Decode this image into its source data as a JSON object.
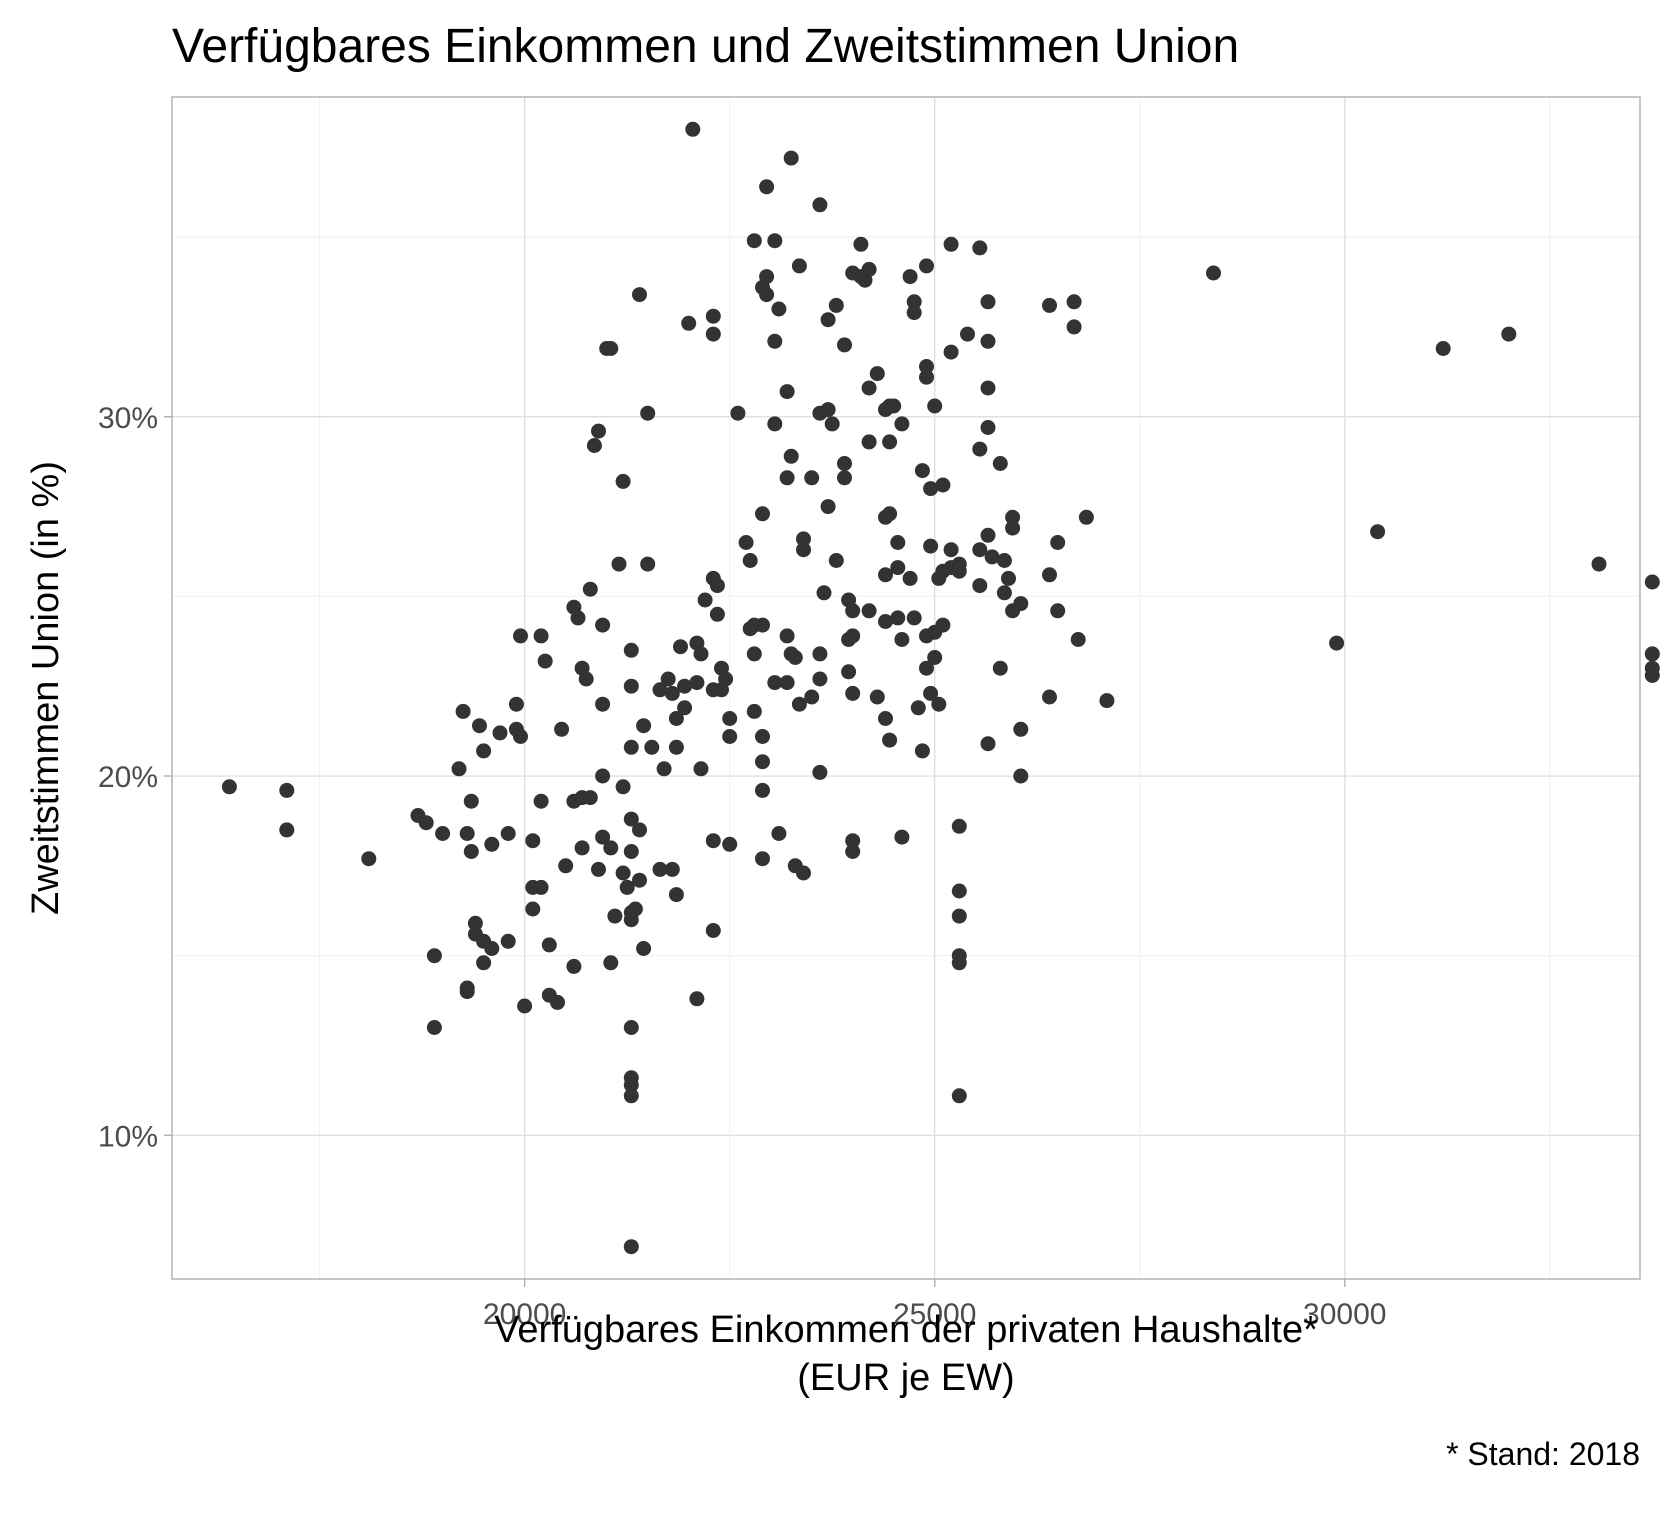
{
  "chart_data": {
    "type": "scatter",
    "title": "Verfügbares Einkommen und Zweitstimmen Union",
    "xlabel": [
      "Verfügbares Einkommen der privaten Haushalte*",
      "(EUR je EW)"
    ],
    "ylabel": "Zweitstimmen Union (in %)",
    "caption": "* Stand: 2018",
    "xlim": [
      15700,
      33600
    ],
    "ylim": [
      6.0,
      38.9
    ],
    "x_ticks": [
      20000,
      25000,
      30000
    ],
    "x_tick_labels": [
      "20000",
      "25000",
      "30000"
    ],
    "y_ticks": [
      10,
      20,
      30
    ],
    "y_tick_labels": [
      "10%",
      "20%",
      "30%"
    ],
    "grid": true,
    "point_color": "#333333",
    "points": [
      [
        16400,
        19.7
      ],
      [
        17100,
        19.6
      ],
      [
        17100,
        18.5
      ],
      [
        18100,
        17.7
      ],
      [
        18700,
        18.9
      ],
      [
        18800,
        18.7
      ],
      [
        18900,
        15.0
      ],
      [
        18900,
        13.0
      ],
      [
        19000,
        18.4
      ],
      [
        19200,
        20.2
      ],
      [
        19250,
        21.8
      ],
      [
        19300,
        18.4
      ],
      [
        19300,
        14.0
      ],
      [
        19300,
        14.1
      ],
      [
        19350,
        19.3
      ],
      [
        19350,
        17.9
      ],
      [
        19400,
        15.6
      ],
      [
        19400,
        15.9
      ],
      [
        19450,
        21.4
      ],
      [
        19500,
        20.7
      ],
      [
        19500,
        15.4
      ],
      [
        19500,
        14.8
      ],
      [
        19600,
        18.1
      ],
      [
        19600,
        15.2
      ],
      [
        19700,
        21.2
      ],
      [
        19800,
        18.4
      ],
      [
        19800,
        15.4
      ],
      [
        19900,
        21.3
      ],
      [
        19900,
        22.0
      ],
      [
        19950,
        21.1
      ],
      [
        19950,
        23.9
      ],
      [
        20000,
        13.6
      ],
      [
        20100,
        18.2
      ],
      [
        20100,
        16.9
      ],
      [
        20100,
        16.3
      ],
      [
        20200,
        23.9
      ],
      [
        20200,
        19.3
      ],
      [
        20200,
        16.9
      ],
      [
        20250,
        23.2
      ],
      [
        20300,
        15.3
      ],
      [
        20300,
        13.9
      ],
      [
        20400,
        13.7
      ],
      [
        20450,
        21.3
      ],
      [
        20500,
        17.5
      ],
      [
        20600,
        24.7
      ],
      [
        20600,
        19.3
      ],
      [
        20600,
        14.7
      ],
      [
        20650,
        24.4
      ],
      [
        20700,
        23.0
      ],
      [
        20700,
        19.4
      ],
      [
        20700,
        18.0
      ],
      [
        20750,
        22.7
      ],
      [
        20800,
        25.2
      ],
      [
        20800,
        19.4
      ],
      [
        20850,
        29.2
      ],
      [
        20900,
        29.6
      ],
      [
        20900,
        17.4
      ],
      [
        20950,
        24.2
      ],
      [
        20950,
        22.0
      ],
      [
        20950,
        20.0
      ],
      [
        20950,
        18.3
      ],
      [
        21000,
        31.9
      ],
      [
        21050,
        31.9
      ],
      [
        21050,
        18.0
      ],
      [
        21050,
        14.8
      ],
      [
        21100,
        16.1
      ],
      [
        21150,
        25.9
      ],
      [
        21200,
        28.2
      ],
      [
        21200,
        19.7
      ],
      [
        21200,
        17.3
      ],
      [
        21250,
        16.9
      ],
      [
        21300,
        23.5
      ],
      [
        21300,
        22.5
      ],
      [
        21300,
        20.8
      ],
      [
        21300,
        18.8
      ],
      [
        21300,
        17.9
      ],
      [
        21300,
        16.0
      ],
      [
        21300,
        16.2
      ],
      [
        21300,
        13.0
      ],
      [
        21300,
        11.6
      ],
      [
        21300,
        11.4
      ],
      [
        21300,
        11.1
      ],
      [
        21300,
        6.9
      ],
      [
        21350,
        16.3
      ],
      [
        21400,
        33.4
      ],
      [
        21400,
        18.5
      ],
      [
        21400,
        17.1
      ],
      [
        21450,
        21.4
      ],
      [
        21450,
        15.2
      ],
      [
        21500,
        30.1
      ],
      [
        21500,
        25.9
      ],
      [
        21550,
        20.8
      ],
      [
        21650,
        22.4
      ],
      [
        21650,
        17.4
      ],
      [
        21700,
        20.2
      ],
      [
        21750,
        22.7
      ],
      [
        21800,
        22.3
      ],
      [
        21800,
        17.4
      ],
      [
        21850,
        21.6
      ],
      [
        21850,
        20.8
      ],
      [
        21850,
        16.7
      ],
      [
        21900,
        23.6
      ],
      [
        21950,
        22.5
      ],
      [
        21950,
        21.9
      ],
      [
        22000,
        32.6
      ],
      [
        22050,
        38.0
      ],
      [
        22100,
        23.7
      ],
      [
        22100,
        22.6
      ],
      [
        22100,
        13.8
      ],
      [
        22150,
        23.4
      ],
      [
        22150,
        20.2
      ],
      [
        22200,
        24.9
      ],
      [
        22300,
        32.3
      ],
      [
        22300,
        32.8
      ],
      [
        22300,
        25.5
      ],
      [
        22300,
        22.4
      ],
      [
        22300,
        18.2
      ],
      [
        22300,
        15.7
      ],
      [
        22350,
        25.3
      ],
      [
        22350,
        24.5
      ],
      [
        22400,
        22.4
      ],
      [
        22400,
        23.0
      ],
      [
        22450,
        22.7
      ],
      [
        22500,
        21.1
      ],
      [
        22500,
        21.6
      ],
      [
        22500,
        18.1
      ],
      [
        22600,
        30.1
      ],
      [
        22700,
        26.5
      ],
      [
        22750,
        24.1
      ],
      [
        22750,
        26.0
      ],
      [
        22800,
        34.9
      ],
      [
        22800,
        24.2
      ],
      [
        22800,
        23.4
      ],
      [
        22800,
        21.8
      ],
      [
        22900,
        27.3
      ],
      [
        22900,
        24.2
      ],
      [
        22900,
        21.1
      ],
      [
        22900,
        20.4
      ],
      [
        22900,
        19.6
      ],
      [
        22900,
        17.7
      ],
      [
        22900,
        33.6
      ],
      [
        22950,
        33.4
      ],
      [
        22950,
        33.9
      ],
      [
        22950,
        36.4
      ],
      [
        23050,
        34.9
      ],
      [
        23050,
        32.1
      ],
      [
        23050,
        29.8
      ],
      [
        23050,
        22.6
      ],
      [
        23100,
        33.0
      ],
      [
        23100,
        18.4
      ],
      [
        23200,
        30.7
      ],
      [
        23200,
        28.3
      ],
      [
        23200,
        23.9
      ],
      [
        23200,
        22.6
      ],
      [
        23250,
        37.2
      ],
      [
        23250,
        28.9
      ],
      [
        23250,
        23.4
      ],
      [
        23300,
        23.3
      ],
      [
        23300,
        17.5
      ],
      [
        23350,
        34.2
      ],
      [
        23350,
        22.0
      ],
      [
        23400,
        26.6
      ],
      [
        23400,
        26.3
      ],
      [
        23400,
        17.3
      ],
      [
        23500,
        22.2
      ],
      [
        23500,
        28.3
      ],
      [
        23600,
        35.9
      ],
      [
        23600,
        30.1
      ],
      [
        23600,
        23.4
      ],
      [
        23600,
        22.7
      ],
      [
        23600,
        20.1
      ],
      [
        23650,
        25.1
      ],
      [
        23700,
        32.7
      ],
      [
        23700,
        30.2
      ],
      [
        23700,
        27.5
      ],
      [
        23750,
        29.8
      ],
      [
        23800,
        26.0
      ],
      [
        23800,
        33.1
      ],
      [
        23900,
        32.0
      ],
      [
        23900,
        28.3
      ],
      [
        23900,
        28.7
      ],
      [
        23950,
        24.9
      ],
      [
        23950,
        23.8
      ],
      [
        23950,
        22.9
      ],
      [
        24000,
        34.0
      ],
      [
        24000,
        24.6
      ],
      [
        24000,
        23.9
      ],
      [
        24000,
        22.3
      ],
      [
        24000,
        18.2
      ],
      [
        24000,
        17.9
      ],
      [
        24100,
        33.9
      ],
      [
        24100,
        34.8
      ],
      [
        24150,
        33.8
      ],
      [
        24200,
        34.1
      ],
      [
        24200,
        30.8
      ],
      [
        24200,
        29.3
      ],
      [
        24200,
        24.6
      ],
      [
        24300,
        31.2
      ],
      [
        24300,
        22.2
      ],
      [
        24400,
        30.2
      ],
      [
        24400,
        27.2
      ],
      [
        24400,
        25.6
      ],
      [
        24400,
        24.3
      ],
      [
        24400,
        21.6
      ],
      [
        24450,
        30.3
      ],
      [
        24450,
        27.3
      ],
      [
        24450,
        21.0
      ],
      [
        24450,
        29.3
      ],
      [
        24500,
        30.3
      ],
      [
        24550,
        26.5
      ],
      [
        24550,
        25.8
      ],
      [
        24550,
        24.4
      ],
      [
        24600,
        23.8
      ],
      [
        24600,
        18.3
      ],
      [
        24600,
        29.8
      ],
      [
        24700,
        33.9
      ],
      [
        24700,
        25.5
      ],
      [
        24750,
        33.2
      ],
      [
        24750,
        32.9
      ],
      [
        24750,
        24.4
      ],
      [
        24800,
        21.9
      ],
      [
        24850,
        28.5
      ],
      [
        24850,
        20.7
      ],
      [
        24900,
        34.2
      ],
      [
        24900,
        31.4
      ],
      [
        24900,
        31.1
      ],
      [
        24900,
        23.9
      ],
      [
        24900,
        23.0
      ],
      [
        24950,
        26.4
      ],
      [
        24950,
        22.3
      ],
      [
        24950,
        28.0
      ],
      [
        25000,
        30.3
      ],
      [
        25000,
        24.0
      ],
      [
        25000,
        23.3
      ],
      [
        25050,
        25.5
      ],
      [
        25050,
        22.0
      ],
      [
        25100,
        28.1
      ],
      [
        25100,
        25.7
      ],
      [
        25100,
        24.2
      ],
      [
        25200,
        31.8
      ],
      [
        25200,
        34.8
      ],
      [
        25200,
        26.3
      ],
      [
        25200,
        25.8
      ],
      [
        25300,
        25.7
      ],
      [
        25300,
        25.9
      ],
      [
        25300,
        18.6
      ],
      [
        25300,
        16.8
      ],
      [
        25300,
        16.1
      ],
      [
        25300,
        15.0
      ],
      [
        25300,
        14.8
      ],
      [
        25300,
        11.1
      ],
      [
        25400,
        32.3
      ],
      [
        25550,
        34.7
      ],
      [
        25550,
        29.1
      ],
      [
        25550,
        26.3
      ],
      [
        25550,
        25.3
      ],
      [
        25650,
        26.7
      ],
      [
        25650,
        33.2
      ],
      [
        25650,
        32.1
      ],
      [
        25650,
        30.8
      ],
      [
        25650,
        29.7
      ],
      [
        25650,
        20.9
      ],
      [
        25700,
        26.1
      ],
      [
        25800,
        28.7
      ],
      [
        25800,
        23.0
      ],
      [
        25850,
        26.0
      ],
      [
        25850,
        25.1
      ],
      [
        25900,
        25.5
      ],
      [
        25950,
        27.2
      ],
      [
        25950,
        26.9
      ],
      [
        25950,
        24.6
      ],
      [
        26050,
        24.8
      ],
      [
        26050,
        21.3
      ],
      [
        26050,
        20.0
      ],
      [
        26400,
        33.1
      ],
      [
        26400,
        25.6
      ],
      [
        26400,
        22.2
      ],
      [
        26500,
        26.5
      ],
      [
        26500,
        24.6
      ],
      [
        26700,
        33.2
      ],
      [
        26700,
        32.5
      ],
      [
        26750,
        23.8
      ],
      [
        26850,
        27.2
      ],
      [
        27100,
        22.1
      ],
      [
        28400,
        34.0
      ],
      [
        29900,
        23.7
      ],
      [
        30400,
        26.8
      ],
      [
        31200,
        31.9
      ],
      [
        32000,
        32.3
      ],
      [
        33100,
        25.9
      ],
      [
        33750,
        25.4
      ],
      [
        33750,
        23.4
      ],
      [
        33750,
        23.0
      ],
      [
        33750,
        22.8
      ]
    ]
  }
}
